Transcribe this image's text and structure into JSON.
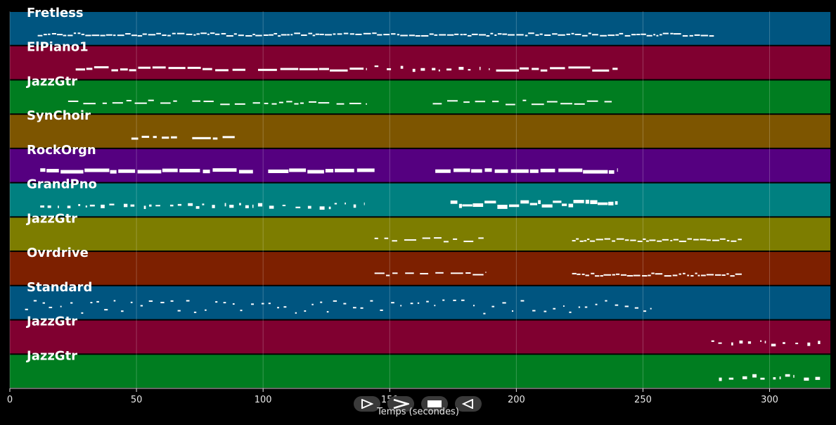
{
  "chart_data": {
    "type": "piano-roll",
    "xlabel": "Temps (secondes)",
    "xlim": [
      0,
      324
    ],
    "xticks": [
      0,
      50,
      100,
      150,
      200,
      250,
      300
    ],
    "grid": true,
    "tracks": [
      {
        "name": "Fretless",
        "color": "#005580",
        "segments": [
          [
            11,
            278,
            "dense"
          ]
        ]
      },
      {
        "name": "ElPiano1",
        "color": "#800030",
        "segments": [
          [
            26,
            93,
            "long"
          ],
          [
            98,
            141,
            "long"
          ],
          [
            144,
            190,
            "sparse"
          ],
          [
            192,
            240,
            "long"
          ]
        ]
      },
      {
        "name": "JazzGtr",
        "color": "#007d20",
        "segments": [
          [
            23,
            66,
            "medium"
          ],
          [
            72,
            141,
            "medium"
          ],
          [
            167,
            238,
            "medium"
          ]
        ]
      },
      {
        "name": "SynChoir",
        "color": "#7d5500",
        "segments": [
          [
            48,
            58,
            "long"
          ],
          [
            60,
            66,
            "long"
          ],
          [
            72,
            82,
            "long"
          ],
          [
            84,
            89,
            "long"
          ]
        ]
      },
      {
        "name": "RockOrgn",
        "color": "#550080",
        "segments": [
          [
            12,
            96,
            "chunky"
          ],
          [
            102,
            144,
            "chunky"
          ],
          [
            168,
            240,
            "chunky"
          ]
        ]
      },
      {
        "name": "GrandPno",
        "color": "#008080",
        "segments": [
          [
            12,
            140,
            "sparse"
          ],
          [
            174,
            240,
            "dense-block"
          ]
        ]
      },
      {
        "name": "JazzGtr",
        "color": "#7d7d00",
        "segments": [
          [
            144,
            188,
            "medium"
          ],
          [
            222,
            289,
            "dense"
          ]
        ]
      },
      {
        "name": "Ovrdrive",
        "color": "#7d2000",
        "segments": [
          [
            144,
            188,
            "medium"
          ],
          [
            222,
            289,
            "dense"
          ]
        ]
      },
      {
        "name": "Standard",
        "color": "#005580",
        "segments": [
          [
            6,
            255,
            "drums"
          ]
        ]
      },
      {
        "name": "JazzGtr",
        "color": "#800030",
        "segments": [
          [
            277,
            320,
            "sparse"
          ]
        ]
      },
      {
        "name": "JazzGtr",
        "color": "#007d20",
        "segments": [
          [
            280,
            320,
            "sparse"
          ]
        ]
      }
    ]
  },
  "controls": [
    {
      "name": "play-button",
      "icon": "play-outline-icon"
    },
    {
      "name": "forward-button",
      "icon": "chevron-right-icon"
    },
    {
      "name": "stop-button",
      "icon": "stop-icon"
    },
    {
      "name": "rewind-button",
      "icon": "triangle-left-icon"
    }
  ]
}
